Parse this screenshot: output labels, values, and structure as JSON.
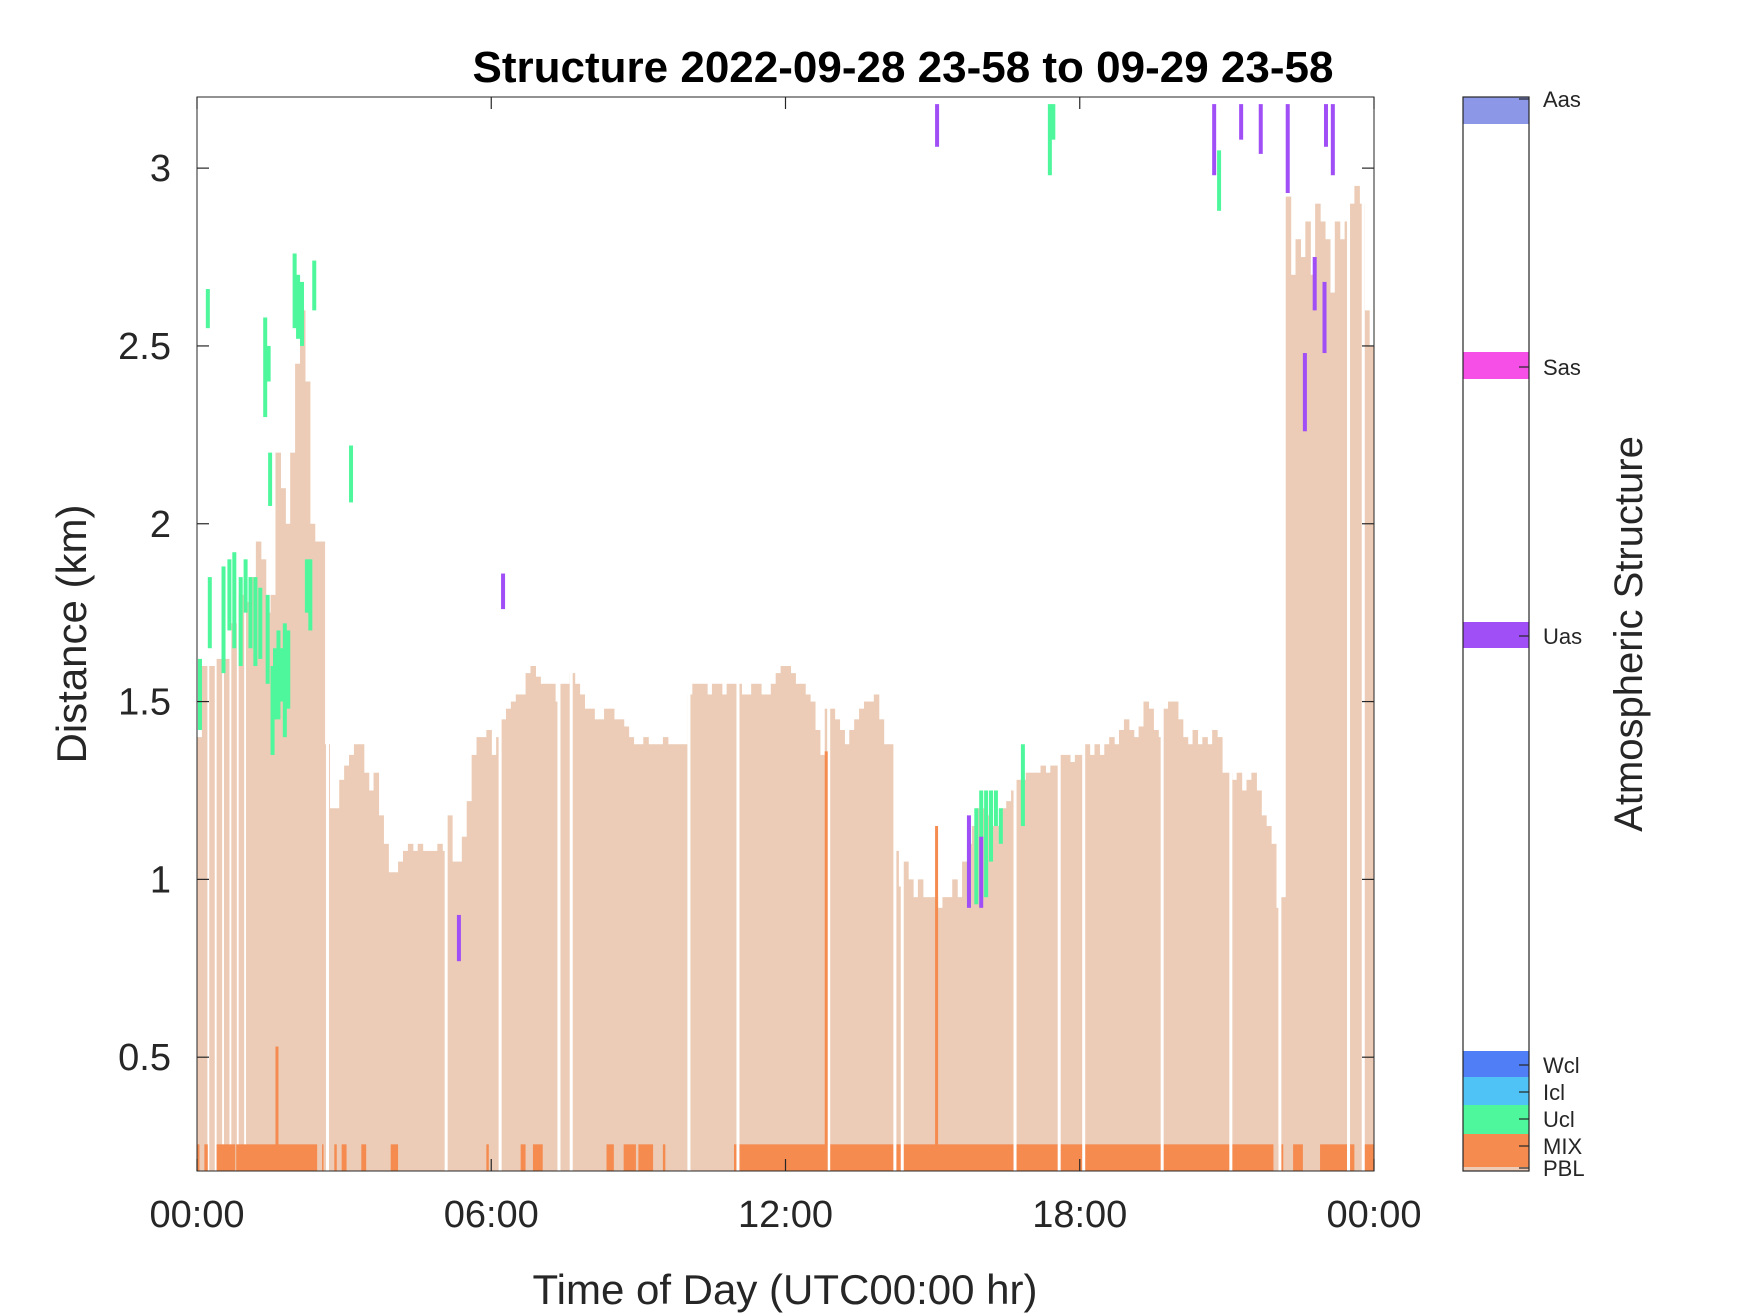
{
  "chart_data": {
    "type": "heatmap",
    "title": "Structure 2022-09-28 23-58 to 09-29 23-58",
    "xlabel": "Time of Day (UTC00:00 hr)",
    "ylabel": "Distance (km)",
    "xlim": [
      0,
      24
    ],
    "ylim": [
      0.18,
      3.2
    ],
    "x_ticks": [
      0,
      6,
      12,
      18,
      24
    ],
    "x_tick_labels": [
      "00:00",
      "06:00",
      "12:00",
      "18:00",
      "00:00"
    ],
    "y_ticks": [
      0.5,
      1,
      1.5,
      2,
      2.5,
      3
    ],
    "y_tick_labels": [
      "0.5",
      "1",
      "1.5",
      "2",
      "2.5",
      "3"
    ],
    "colorbar": {
      "title": "Atmospheric Structure",
      "classes": [
        {
          "label": "PBL",
          "color": "#ecccb6"
        },
        {
          "label": "MIX",
          "color": "#f68b50"
        },
        {
          "label": "Ucl",
          "color": "#4ef79c"
        },
        {
          "label": "Icl",
          "color": "#4fc3f6"
        },
        {
          "label": "Wcl",
          "color": "#4f7ef6"
        },
        {
          "label": "Uas",
          "color": "#a04ef6"
        },
        {
          "label": "Sas",
          "color": "#f64fe8"
        },
        {
          "label": "Aas",
          "color": "#8c97e8"
        }
      ]
    },
    "pbl_height_km": [
      [
        0.0,
        1.4
      ],
      [
        0.1,
        1.6
      ],
      [
        0.25,
        1.6
      ],
      [
        0.4,
        1.62
      ],
      [
        0.55,
        1.62
      ],
      [
        0.7,
        1.72
      ],
      [
        0.85,
        1.8
      ],
      [
        1.0,
        1.78
      ],
      [
        1.1,
        1.85
      ],
      [
        1.2,
        1.95
      ],
      [
        1.3,
        1.9
      ],
      [
        1.4,
        1.75
      ],
      [
        1.5,
        1.8
      ],
      [
        1.6,
        2.2
      ],
      [
        1.7,
        2.1
      ],
      [
        1.8,
        2.0
      ],
      [
        1.9,
        2.2
      ],
      [
        2.0,
        2.45
      ],
      [
        2.1,
        2.6
      ],
      [
        2.2,
        2.4
      ],
      [
        2.3,
        2.0
      ],
      [
        2.4,
        1.95
      ],
      [
        2.5,
        1.95
      ],
      [
        2.6,
        1.38
      ],
      [
        2.7,
        1.2
      ],
      [
        2.8,
        1.2
      ],
      [
        2.9,
        1.28
      ],
      [
        3.0,
        1.32
      ],
      [
        3.1,
        1.35
      ],
      [
        3.2,
        1.38
      ],
      [
        3.3,
        1.38
      ],
      [
        3.4,
        1.3
      ],
      [
        3.5,
        1.25
      ],
      [
        3.6,
        1.3
      ],
      [
        3.7,
        1.18
      ],
      [
        3.8,
        1.1
      ],
      [
        3.9,
        1.02
      ],
      [
        4.0,
        1.02
      ],
      [
        4.1,
        1.05
      ],
      [
        4.2,
        1.08
      ],
      [
        4.3,
        1.1
      ],
      [
        4.4,
        1.08
      ],
      [
        4.5,
        1.1
      ],
      [
        4.6,
        1.08
      ],
      [
        4.7,
        1.08
      ],
      [
        4.8,
        1.08
      ],
      [
        4.9,
        1.1
      ],
      [
        5.0,
        1.08
      ],
      [
        5.1,
        1.18
      ],
      [
        5.2,
        1.05
      ],
      [
        5.3,
        1.05
      ],
      [
        5.4,
        1.12
      ],
      [
        5.5,
        1.22
      ],
      [
        5.6,
        1.35
      ],
      [
        5.7,
        1.4
      ],
      [
        5.8,
        1.4
      ],
      [
        5.9,
        1.42
      ],
      [
        6.0,
        1.35
      ],
      [
        6.1,
        1.4
      ],
      [
        6.2,
        1.45
      ],
      [
        6.3,
        1.48
      ],
      [
        6.4,
        1.5
      ],
      [
        6.5,
        1.52
      ],
      [
        6.6,
        1.52
      ],
      [
        6.7,
        1.58
      ],
      [
        6.8,
        1.6
      ],
      [
        6.9,
        1.57
      ],
      [
        7.0,
        1.55
      ],
      [
        7.1,
        1.55
      ],
      [
        7.2,
        1.55
      ],
      [
        7.3,
        1.5
      ],
      [
        7.4,
        1.55
      ],
      [
        7.5,
        1.55
      ],
      [
        7.6,
        1.58
      ],
      [
        7.7,
        1.55
      ],
      [
        7.8,
        1.52
      ],
      [
        7.9,
        1.48
      ],
      [
        8.0,
        1.48
      ],
      [
        8.1,
        1.45
      ],
      [
        8.2,
        1.45
      ],
      [
        8.3,
        1.48
      ],
      [
        8.4,
        1.48
      ],
      [
        8.5,
        1.45
      ],
      [
        8.6,
        1.45
      ],
      [
        8.7,
        1.43
      ],
      [
        8.8,
        1.4
      ],
      [
        8.9,
        1.38
      ],
      [
        9.0,
        1.38
      ],
      [
        9.1,
        1.4
      ],
      [
        9.2,
        1.38
      ],
      [
        9.3,
        1.38
      ],
      [
        9.4,
        1.38
      ],
      [
        9.5,
        1.4
      ],
      [
        9.6,
        1.38
      ],
      [
        9.7,
        1.38
      ],
      [
        9.8,
        1.38
      ],
      [
        9.9,
        1.38
      ],
      [
        10.0,
        1.52
      ],
      [
        10.1,
        1.55
      ],
      [
        10.2,
        1.55
      ],
      [
        10.3,
        1.55
      ],
      [
        10.4,
        1.52
      ],
      [
        10.5,
        1.55
      ],
      [
        10.6,
        1.55
      ],
      [
        10.7,
        1.52
      ],
      [
        10.8,
        1.55
      ],
      [
        10.9,
        1.55
      ],
      [
        11.0,
        1.55
      ],
      [
        11.1,
        1.52
      ],
      [
        11.2,
        1.52
      ],
      [
        11.3,
        1.55
      ],
      [
        11.4,
        1.55
      ],
      [
        11.5,
        1.52
      ],
      [
        11.6,
        1.52
      ],
      [
        11.7,
        1.55
      ],
      [
        11.8,
        1.58
      ],
      [
        11.9,
        1.6
      ],
      [
        12.0,
        1.6
      ],
      [
        12.1,
        1.58
      ],
      [
        12.2,
        1.55
      ],
      [
        12.3,
        1.55
      ],
      [
        12.4,
        1.52
      ],
      [
        12.5,
        1.5
      ],
      [
        12.6,
        1.42
      ],
      [
        12.7,
        1.35
      ],
      [
        12.8,
        1.48
      ],
      [
        12.9,
        1.48
      ],
      [
        13.0,
        1.45
      ],
      [
        13.1,
        1.42
      ],
      [
        13.2,
        1.38
      ],
      [
        13.3,
        1.42
      ],
      [
        13.4,
        1.45
      ],
      [
        13.5,
        1.48
      ],
      [
        13.6,
        1.5
      ],
      [
        13.7,
        1.5
      ],
      [
        13.8,
        1.52
      ],
      [
        13.9,
        1.45
      ],
      [
        14.0,
        1.38
      ],
      [
        14.1,
        1.38
      ],
      [
        14.2,
        1.08
      ],
      [
        14.3,
        0.98
      ],
      [
        14.4,
        1.05
      ],
      [
        14.5,
        1.0
      ],
      [
        14.6,
        0.95
      ],
      [
        14.7,
        1.0
      ],
      [
        14.8,
        0.95
      ],
      [
        14.9,
        0.95
      ],
      [
        15.0,
        0.95
      ],
      [
        15.1,
        0.92
      ],
      [
        15.2,
        0.95
      ],
      [
        15.3,
        0.95
      ],
      [
        15.4,
        1.0
      ],
      [
        15.5,
        0.95
      ],
      [
        15.6,
        1.05
      ],
      [
        15.7,
        1.1
      ],
      [
        15.8,
        1.15
      ],
      [
        15.9,
        1.2
      ],
      [
        16.0,
        1.2
      ],
      [
        16.1,
        1.18
      ],
      [
        16.2,
        1.15
      ],
      [
        16.3,
        1.15
      ],
      [
        16.4,
        1.2
      ],
      [
        16.5,
        1.22
      ],
      [
        16.6,
        1.25
      ],
      [
        16.7,
        1.28
      ],
      [
        16.8,
        1.28
      ],
      [
        16.9,
        1.3
      ],
      [
        17.0,
        1.3
      ],
      [
        17.1,
        1.3
      ],
      [
        17.2,
        1.32
      ],
      [
        17.3,
        1.3
      ],
      [
        17.4,
        1.32
      ],
      [
        17.5,
        1.32
      ],
      [
        17.6,
        1.35
      ],
      [
        17.7,
        1.35
      ],
      [
        17.8,
        1.33
      ],
      [
        17.9,
        1.35
      ],
      [
        18.0,
        1.35
      ],
      [
        18.1,
        1.38
      ],
      [
        18.2,
        1.35
      ],
      [
        18.3,
        1.38
      ],
      [
        18.4,
        1.35
      ],
      [
        18.5,
        1.38
      ],
      [
        18.6,
        1.4
      ],
      [
        18.7,
        1.38
      ],
      [
        18.8,
        1.42
      ],
      [
        18.9,
        1.45
      ],
      [
        19.0,
        1.42
      ],
      [
        19.1,
        1.4
      ],
      [
        19.2,
        1.43
      ],
      [
        19.3,
        1.5
      ],
      [
        19.4,
        1.48
      ],
      [
        19.5,
        1.42
      ],
      [
        19.6,
        1.4
      ],
      [
        19.7,
        1.48
      ],
      [
        19.8,
        1.5
      ],
      [
        19.9,
        1.5
      ],
      [
        20.0,
        1.45
      ],
      [
        20.1,
        1.4
      ],
      [
        20.2,
        1.38
      ],
      [
        20.3,
        1.42
      ],
      [
        20.4,
        1.38
      ],
      [
        20.5,
        1.4
      ],
      [
        20.6,
        1.38
      ],
      [
        20.7,
        1.42
      ],
      [
        20.8,
        1.4
      ],
      [
        20.9,
        1.3
      ],
      [
        21.0,
        1.3
      ],
      [
        21.1,
        1.28
      ],
      [
        21.2,
        1.3
      ],
      [
        21.3,
        1.25
      ],
      [
        21.4,
        1.28
      ],
      [
        21.5,
        1.3
      ],
      [
        21.6,
        1.25
      ],
      [
        21.7,
        1.18
      ],
      [
        21.8,
        1.15
      ],
      [
        21.9,
        1.1
      ],
      [
        22.0,
        0.92
      ],
      [
        22.1,
        0.95
      ],
      [
        22.2,
        2.92
      ],
      [
        22.3,
        2.7
      ],
      [
        22.4,
        2.8
      ],
      [
        22.5,
        2.75
      ],
      [
        22.6,
        2.85
      ],
      [
        22.7,
        2.7
      ],
      [
        22.8,
        2.9
      ],
      [
        22.9,
        2.85
      ],
      [
        23.0,
        2.8
      ],
      [
        23.1,
        2.65
      ],
      [
        23.2,
        2.85
      ],
      [
        23.3,
        2.8
      ],
      [
        23.4,
        2.85
      ],
      [
        23.5,
        2.9
      ],
      [
        23.6,
        2.95
      ],
      [
        23.7,
        2.9
      ],
      [
        23.8,
        2.6
      ],
      [
        23.9,
        2.5
      ]
    ],
    "pbl_gaps_h": [
      2.63,
      5.05,
      6.15,
      7.35,
      7.6,
      10.0,
      11.0,
      12.85,
      14.2,
      14.35,
      16.65,
      17.55,
      18.05,
      19.65,
      21.05,
      22.05,
      23.45,
      23.75
    ],
    "mix_surface_segments_h": [
      [
        0.0,
        0.05
      ],
      [
        0.15,
        0.22
      ],
      [
        0.4,
        0.78
      ],
      [
        0.8,
        2.45
      ],
      [
        2.55,
        2.58
      ],
      [
        2.8,
        2.85
      ],
      [
        2.95,
        3.05
      ],
      [
        3.35,
        3.45
      ],
      [
        3.95,
        4.1
      ],
      [
        5.9,
        5.95
      ],
      [
        6.6,
        6.7
      ],
      [
        6.85,
        7.05
      ],
      [
        8.35,
        8.5
      ],
      [
        8.7,
        8.95
      ],
      [
        9.0,
        9.3
      ],
      [
        9.5,
        9.55
      ],
      [
        10.95,
        21.95
      ],
      [
        22.05,
        22.15
      ],
      [
        22.35,
        22.55
      ],
      [
        22.9,
        23.45
      ],
      [
        23.5,
        23.6
      ],
      [
        23.8,
        24.0
      ]
    ],
    "mix_spikes": [
      [
        1.6,
        0.53
      ],
      [
        12.8,
        1.36
      ],
      [
        15.05,
        1.15
      ]
    ],
    "ucl_segments": [
      [
        0.02,
        1.42,
        1.62
      ],
      [
        0.18,
        2.55,
        2.66
      ],
      [
        0.22,
        1.65,
        1.85
      ],
      [
        0.5,
        1.58,
        1.88
      ],
      [
        0.62,
        1.7,
        1.9
      ],
      [
        0.72,
        1.65,
        1.92
      ],
      [
        0.85,
        1.6,
        1.85
      ],
      [
        0.95,
        1.75,
        1.9
      ],
      [
        1.05,
        1.65,
        1.85
      ],
      [
        1.15,
        1.6,
        1.85
      ],
      [
        1.25,
        1.62,
        1.82
      ],
      [
        1.35,
        2.3,
        2.58
      ],
      [
        1.4,
        1.55,
        1.8
      ],
      [
        1.42,
        2.4,
        2.5
      ],
      [
        1.45,
        2.05,
        2.2
      ],
      [
        1.5,
        1.35,
        1.6
      ],
      [
        1.55,
        1.45,
        1.65
      ],
      [
        1.62,
        1.45,
        1.7
      ],
      [
        1.68,
        1.5,
        1.65
      ],
      [
        1.75,
        1.4,
        1.72
      ],
      [
        1.82,
        1.48,
        1.7
      ],
      [
        1.95,
        2.55,
        2.76
      ],
      [
        2.02,
        2.52,
        2.7
      ],
      [
        2.1,
        2.5,
        2.68
      ],
      [
        2.2,
        1.75,
        1.9
      ],
      [
        2.27,
        1.7,
        1.9
      ],
      [
        2.35,
        2.6,
        2.74
      ],
      [
        3.1,
        2.06,
        2.22
      ],
      [
        15.7,
        0.95,
        1.15
      ],
      [
        15.85,
        0.93,
        1.2
      ],
      [
        15.95,
        0.95,
        1.25
      ],
      [
        16.05,
        0.95,
        1.25
      ],
      [
        16.15,
        1.05,
        1.25
      ],
      [
        16.25,
        1.15,
        1.25
      ],
      [
        16.35,
        1.1,
        1.2
      ],
      [
        16.8,
        1.15,
        1.38
      ],
      [
        17.35,
        2.98,
        3.18
      ],
      [
        17.42,
        3.08,
        3.18
      ],
      [
        20.8,
        2.88,
        3.05
      ]
    ],
    "uas_segments": [
      [
        5.3,
        0.77,
        0.9
      ],
      [
        6.2,
        1.76,
        1.86
      ],
      [
        15.05,
        3.06,
        3.18
      ],
      [
        15.7,
        0.92,
        1.18
      ],
      [
        15.95,
        0.92,
        1.12
      ],
      [
        20.7,
        2.98,
        3.18
      ],
      [
        21.25,
        3.08,
        3.18
      ],
      [
        21.65,
        3.04,
        3.18
      ],
      [
        22.2,
        2.93,
        3.18
      ],
      [
        22.55,
        2.26,
        2.48
      ],
      [
        22.75,
        2.6,
        2.75
      ],
      [
        22.95,
        2.48,
        2.68
      ],
      [
        22.98,
        3.06,
        3.18
      ],
      [
        23.12,
        2.98,
        3.18
      ]
    ]
  }
}
